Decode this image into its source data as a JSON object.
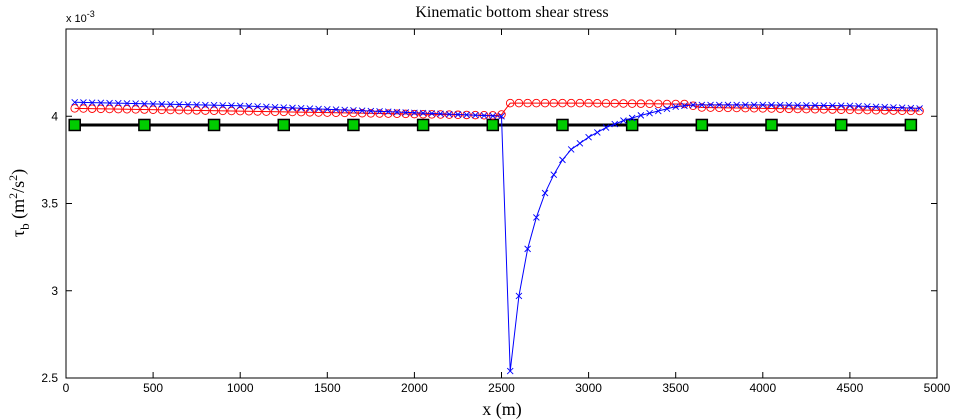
{
  "chart_data": {
    "type": "line",
    "title": "Kinematic bottom shear stress",
    "xlabel": "x (m)",
    "ylabel": {
      "base": "τ",
      "sub": "b",
      "units_open": " (m",
      "sup1": "2",
      "units_mid": "/s",
      "sup2": "2",
      "units_close": ")"
    },
    "exponent_label": {
      "base": "x 10",
      "power": "-3"
    },
    "xlim": [
      0,
      5000
    ],
    "ylim": [
      2.5,
      4.5
    ],
    "xticks": [
      "0",
      "500",
      "1000",
      "1500",
      "2000",
      "2500",
      "3000",
      "3500",
      "4000",
      "4500",
      "5000"
    ],
    "yticks": [
      "2.5",
      "3",
      "3.5",
      "4"
    ],
    "grid": false,
    "series": [
      {
        "color": "#000000",
        "marker": "square",
        "marker_fill": "#00cc00",
        "line_x": [
          50,
          4850
        ],
        "line_y": [
          3.95,
          3.95
        ],
        "markers_x": [
          50,
          450,
          850,
          1250,
          1650,
          2050,
          2450,
          2850,
          3250,
          3650,
          4050,
          4450,
          4850
        ],
        "markers_y": [
          3.95,
          3.95,
          3.95,
          3.95,
          3.95,
          3.95,
          3.95,
          3.95,
          3.95,
          3.95,
          3.95,
          3.95,
          3.95
        ]
      },
      {
        "color": "#ff0000",
        "marker": "circle",
        "x": [
          50,
          2450,
          2475,
          2500,
          2550,
          3000,
          3500,
          3550,
          3650,
          4000,
          4900
        ],
        "y": [
          4.045,
          4.005,
          4.005,
          4.01,
          4.075,
          4.075,
          4.07,
          4.07,
          4.05,
          4.045,
          4.03
        ],
        "marker_step": 50
      },
      {
        "color": "#0000ff",
        "marker": "x",
        "x": [
          50,
          1000,
          2000,
          2500,
          2550,
          2600,
          2650,
          2700,
          2750,
          2800,
          2850,
          2900,
          3000,
          3100,
          3200,
          3300,
          3400,
          3500,
          3600,
          4000,
          4500,
          4900
        ],
        "y": [
          4.08,
          4.06,
          4.02,
          4.0,
          2.54,
          2.97,
          3.24,
          3.42,
          3.56,
          3.665,
          3.75,
          3.81,
          3.88,
          3.935,
          3.975,
          4.005,
          4.03,
          4.055,
          4.065,
          4.065,
          4.06,
          4.045
        ],
        "marker_step": 50
      }
    ]
  }
}
